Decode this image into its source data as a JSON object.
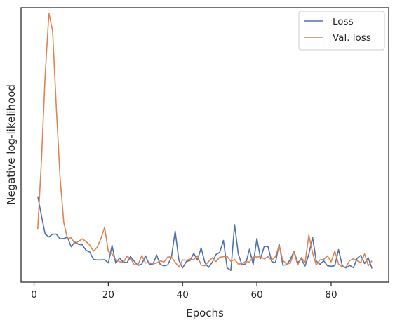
{
  "chart_data": {
    "type": "line",
    "xlabel": "Epochs",
    "ylabel": "Negative log-likelihood",
    "xlim": [
      -3.5,
      95.5
    ],
    "ylim": [
      0.0,
      1.0
    ],
    "xticks": [
      0,
      20,
      40,
      60,
      80
    ],
    "yticks_labeled": false,
    "grid": false,
    "legend_position": "top-right",
    "series": [
      {
        "name": "Loss",
        "color": "#4c72b0",
        "x": [
          1,
          2,
          3,
          4,
          5,
          6,
          7,
          8,
          9,
          10,
          11,
          12,
          13,
          14,
          15,
          16,
          17,
          18,
          19,
          20,
          21,
          22,
          23,
          24,
          25,
          26,
          27,
          28,
          29,
          30,
          31,
          32,
          33,
          34,
          35,
          36,
          37,
          38,
          39,
          40,
          41,
          42,
          43,
          44,
          45,
          46,
          47,
          48,
          49,
          50,
          51,
          52,
          53,
          54,
          55,
          56,
          57,
          58,
          59,
          60,
          61,
          62,
          63,
          64,
          65,
          66,
          67,
          68,
          69,
          70,
          71,
          72,
          73,
          74,
          75,
          76,
          77,
          78,
          79,
          80,
          81,
          82,
          83,
          84,
          85,
          86,
          87,
          88,
          89,
          90,
          91
        ],
        "values": [
          0.313,
          0.241,
          0.175,
          0.165,
          0.175,
          0.175,
          0.158,
          0.159,
          0.164,
          0.129,
          0.146,
          0.138,
          0.136,
          0.116,
          0.11,
          0.083,
          0.081,
          0.081,
          0.082,
          0.07,
          0.134,
          0.069,
          0.088,
          0.073,
          0.071,
          0.093,
          0.076,
          0.061,
          0.066,
          0.096,
          0.066,
          0.065,
          0.099,
          0.064,
          0.06,
          0.063,
          0.091,
          0.186,
          0.08,
          0.052,
          0.075,
          0.079,
          0.105,
          0.081,
          0.125,
          0.071,
          0.054,
          0.073,
          0.101,
          0.109,
          0.152,
          0.052,
          0.043,
          0.21,
          0.103,
          0.063,
          0.067,
          0.12,
          0.065,
          0.159,
          0.086,
          0.131,
          0.129,
          0.075,
          0.071,
          0.139,
          0.062,
          0.063,
          0.083,
          0.112,
          0.072,
          0.083,
          0.059,
          0.102,
          0.163,
          0.077,
          0.065,
          0.078,
          0.06,
          0.058,
          0.06,
          0.119,
          0.06,
          0.052,
          0.061,
          0.053,
          0.087,
          0.098,
          0.068,
          0.089,
          0.05
        ]
      },
      {
        "name": "Val. loss",
        "color": "#dd8452",
        "x": [
          1,
          2,
          3,
          4,
          5,
          6,
          7,
          8,
          9,
          10,
          11,
          12,
          13,
          14,
          15,
          16,
          17,
          18,
          19,
          20,
          21,
          22,
          23,
          24,
          25,
          26,
          27,
          28,
          29,
          30,
          31,
          32,
          33,
          34,
          35,
          36,
          37,
          38,
          39,
          40,
          41,
          42,
          43,
          44,
          45,
          46,
          47,
          48,
          49,
          50,
          51,
          52,
          53,
          54,
          55,
          56,
          57,
          58,
          59,
          60,
          61,
          62,
          63,
          64,
          65,
          66,
          67,
          68,
          69,
          70,
          71,
          72,
          73,
          74,
          75,
          76,
          77,
          78,
          79,
          80,
          81,
          82,
          83,
          84,
          85,
          86,
          87,
          88,
          89,
          90,
          91
        ],
        "values": [
          0.194,
          0.446,
          0.755,
          0.98,
          0.915,
          0.635,
          0.382,
          0.218,
          0.158,
          0.162,
          0.14,
          0.149,
          0.158,
          0.148,
          0.135,
          0.113,
          0.127,
          0.159,
          0.2,
          0.112,
          0.103,
          0.083,
          0.075,
          0.07,
          0.094,
          0.087,
          0.063,
          0.064,
          0.097,
          0.07,
          0.071,
          0.067,
          0.07,
          0.077,
          0.074,
          0.092,
          0.092,
          0.073,
          0.055,
          0.081,
          0.08,
          0.084,
          0.082,
          0.096,
          0.062,
          0.06,
          0.075,
          0.089,
          0.075,
          0.091,
          0.093,
          0.094,
          0.076,
          0.083,
          0.066,
          0.068,
          0.076,
          0.073,
          0.093,
          0.092,
          0.093,
          0.085,
          0.093,
          0.08,
          0.093,
          0.133,
          0.079,
          0.066,
          0.069,
          0.11,
          0.063,
          0.09,
          0.071,
          0.172,
          0.107,
          0.063,
          0.081,
          0.083,
          0.096,
          0.074,
          0.113,
          0.066,
          0.056,
          0.055,
          0.079,
          0.085,
          0.078,
          0.071,
          0.103,
          0.06,
          0.078
        ]
      }
    ]
  }
}
